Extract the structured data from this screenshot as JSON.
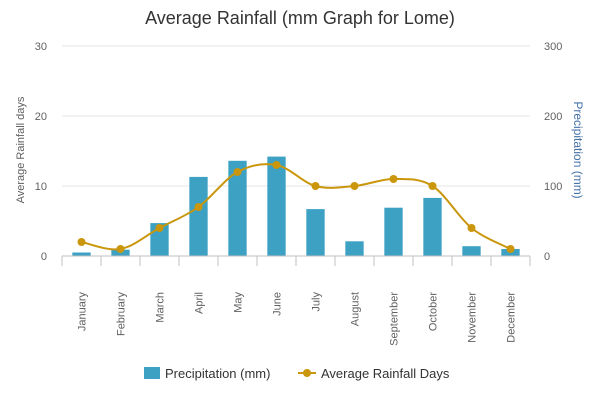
{
  "colors": {
    "bar": "#3DA1C4",
    "line": "#C9960C",
    "grid": "#e6e6e6",
    "right_axis_title": "#4572A7"
  },
  "chart_data": {
    "type": "bar",
    "title": "Average Rainfall (mm Graph for Lome)",
    "categories": [
      "January",
      "February",
      "March",
      "April",
      "May",
      "June",
      "July",
      "August",
      "September",
      "October",
      "November",
      "December"
    ],
    "series": [
      {
        "name": "Precipitation (mm)",
        "type": "bar",
        "axis": "right",
        "values": [
          5,
          9,
          47,
          113,
          136,
          142,
          67,
          21,
          69,
          83,
          14,
          10
        ]
      },
      {
        "name": "Average Rainfall Days",
        "type": "line",
        "axis": "left",
        "values": [
          2,
          1,
          4,
          7,
          12,
          13,
          10,
          10,
          11,
          10,
          4,
          1
        ]
      }
    ],
    "left_axis": {
      "label": "Average Rainfall days",
      "ticks": [
        "0",
        "10",
        "20",
        "30"
      ],
      "range": [
        0,
        30
      ]
    },
    "right_axis": {
      "label": "Precipitation (mm)",
      "ticks": [
        "0",
        "100",
        "200",
        "300"
      ],
      "range": [
        0,
        300
      ]
    },
    "grid": true,
    "legend": "bottom-center"
  }
}
